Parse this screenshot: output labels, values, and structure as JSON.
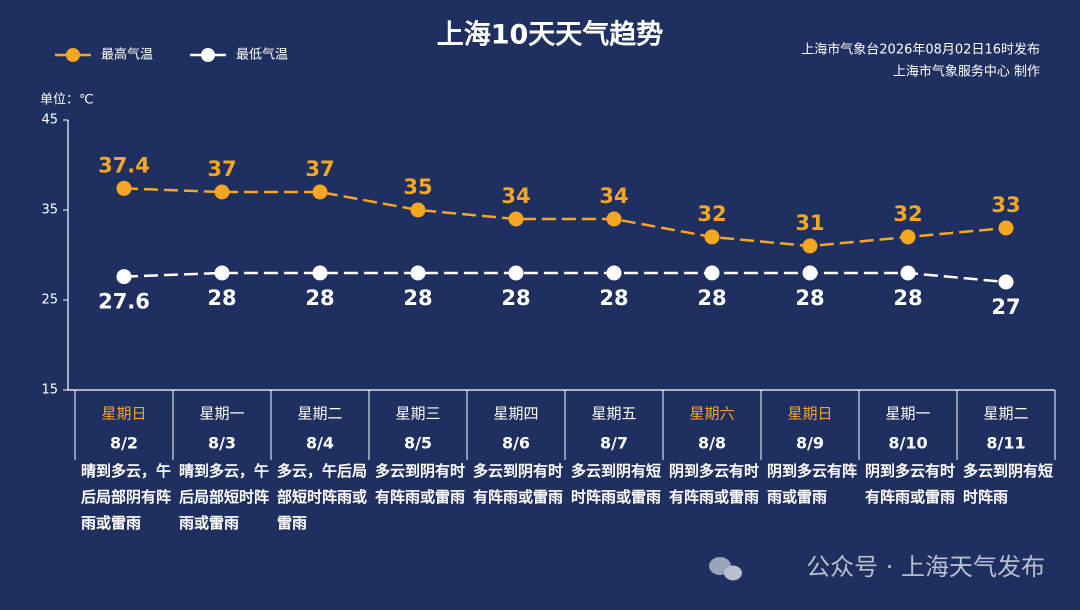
{
  "chart_data": {
    "type": "line",
    "title": "上海10天天气趋势",
    "publisher": [
      "上海市气象台2026年08月02日16时发布",
      "上海市气象服务中心  制作"
    ],
    "unit_label": "单位：℃",
    "categories": [
      "8/2",
      "8/3",
      "8/4",
      "8/5",
      "8/6",
      "8/7",
      "8/8",
      "8/9",
      "8/10",
      "8/11"
    ],
    "weekdays": [
      "星期日",
      "星期一",
      "星期二",
      "星期三",
      "星期四",
      "星期五",
      "星期六",
      "星期日",
      "星期一",
      "星期二"
    ],
    "weekday_colors": [
      "#f5a623",
      "#ffffff",
      "#ffffff",
      "#ffffff",
      "#ffffff",
      "#ffffff",
      "#f5a623",
      "#f5a623",
      "#ffffff",
      "#ffffff"
    ],
    "forecasts": [
      "晴到多云，午后局部阴有阵雨或雷雨",
      "晴到多云，午后局部短时阵雨或雷雨",
      "多云，午后局部短时阵雨或雷雨",
      "多云到阴有时有阵雨或雷雨",
      "多云到阴有时有阵雨或雷雨",
      "多云到阴有短时阵雨或雷雨",
      "阴到多云有时有阵雨或雷雨",
      "阴到多云有阵雨或雷雨",
      "阴到多云有时有阵雨或雷雨",
      "多云到阴有短时阵雨"
    ],
    "series": [
      {
        "name": "最高气温",
        "color": "#f5a623",
        "values": [
          37.4,
          37,
          37,
          35,
          34,
          34,
          32,
          31,
          32,
          33
        ]
      },
      {
        "name": "最低气温",
        "color": "#ffffff",
        "values": [
          27.6,
          28,
          28,
          28,
          28,
          28,
          28,
          28,
          28,
          27
        ]
      }
    ],
    "ylim": [
      15,
      45
    ],
    "yticks": [
      15,
      25,
      35,
      45
    ],
    "watermark": "公众号 · 上海天气发布"
  }
}
